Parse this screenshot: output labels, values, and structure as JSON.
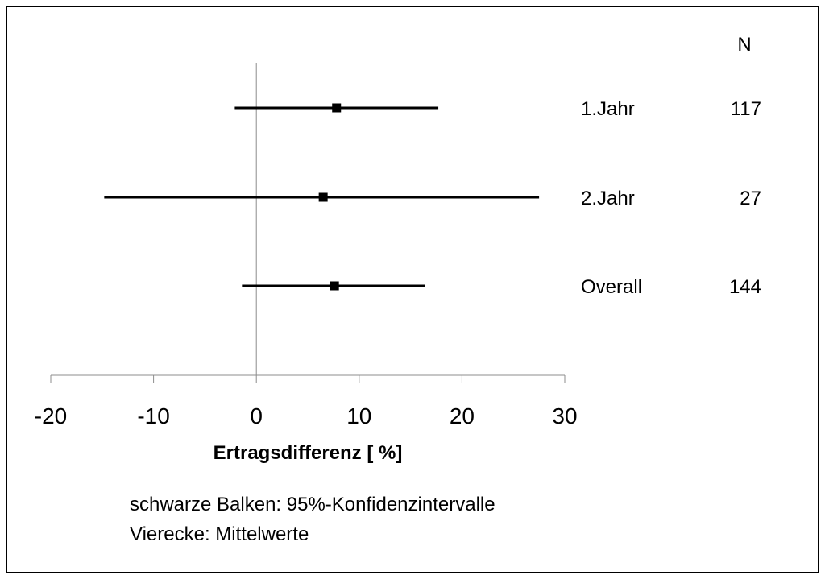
{
  "chart_data": {
    "type": "forest",
    "xlabel": "Ertragsdifferenz [ %]",
    "xlim": [
      -20,
      30
    ],
    "xticks": [
      -20,
      -10,
      0,
      10,
      20,
      30
    ],
    "reference_line": 0,
    "grid": false,
    "n_header": "N",
    "rows": [
      {
        "label": "1.Jahr",
        "n": "117",
        "mean": 7.8,
        "lower": -2.1,
        "upper": 17.7
      },
      {
        "label": "2.Jahr",
        "n": "27",
        "mean": 6.5,
        "lower": -14.8,
        "upper": 27.5
      },
      {
        "label": "Overall",
        "n": "144",
        "mean": 7.6,
        "lower": -1.4,
        "upper": 16.4
      }
    ],
    "notes": [
      "schwarze Balken: 95%-Konfidenzintervalle",
      "Vierecke: Mittelwerte"
    ],
    "colors": {
      "interval": "#000000",
      "marker": "#000000",
      "axis": "#8c8c8c",
      "frame": "#000000"
    }
  }
}
